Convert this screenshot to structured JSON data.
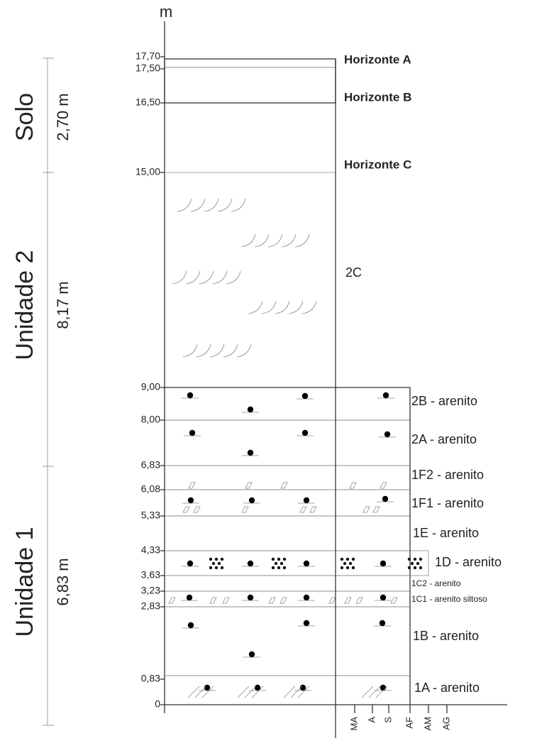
{
  "axis_unit": "m",
  "levels": [
    "17,70",
    "17,50",
    "16,50",
    "15,00",
    "9,00",
    "8,00",
    "6,83",
    "6,08",
    "5,33",
    "4,33",
    "3,63",
    "3,23",
    "2,83",
    "0,83",
    "0"
  ],
  "units": [
    {
      "name": "Solo",
      "thickness": "2,70 m"
    },
    {
      "name": "Unidade 2",
      "thickness": "8,17 m"
    },
    {
      "name": "Unidade 1",
      "thickness": "6,83 m"
    }
  ],
  "layers": [
    {
      "label": "Horizonte A"
    },
    {
      "label": "Horizonte B"
    },
    {
      "label": "Horizonte C"
    },
    {
      "label": "2C"
    },
    {
      "label": "2B - arenito"
    },
    {
      "label": "2A - arenito"
    },
    {
      "label": "1F2 - arenito"
    },
    {
      "label": "1F1 - arenito"
    },
    {
      "label": "1E - arenito"
    },
    {
      "label": "1D - arenito"
    },
    {
      "label": "1C2 - arenito"
    },
    {
      "label": "1C1 - arenito siltoso"
    },
    {
      "label": "1B - arenito"
    },
    {
      "label": "1A - arenito"
    }
  ],
  "grain_sizes": [
    "MA",
    "A",
    "S",
    "AF",
    "AM",
    "AG"
  ]
}
